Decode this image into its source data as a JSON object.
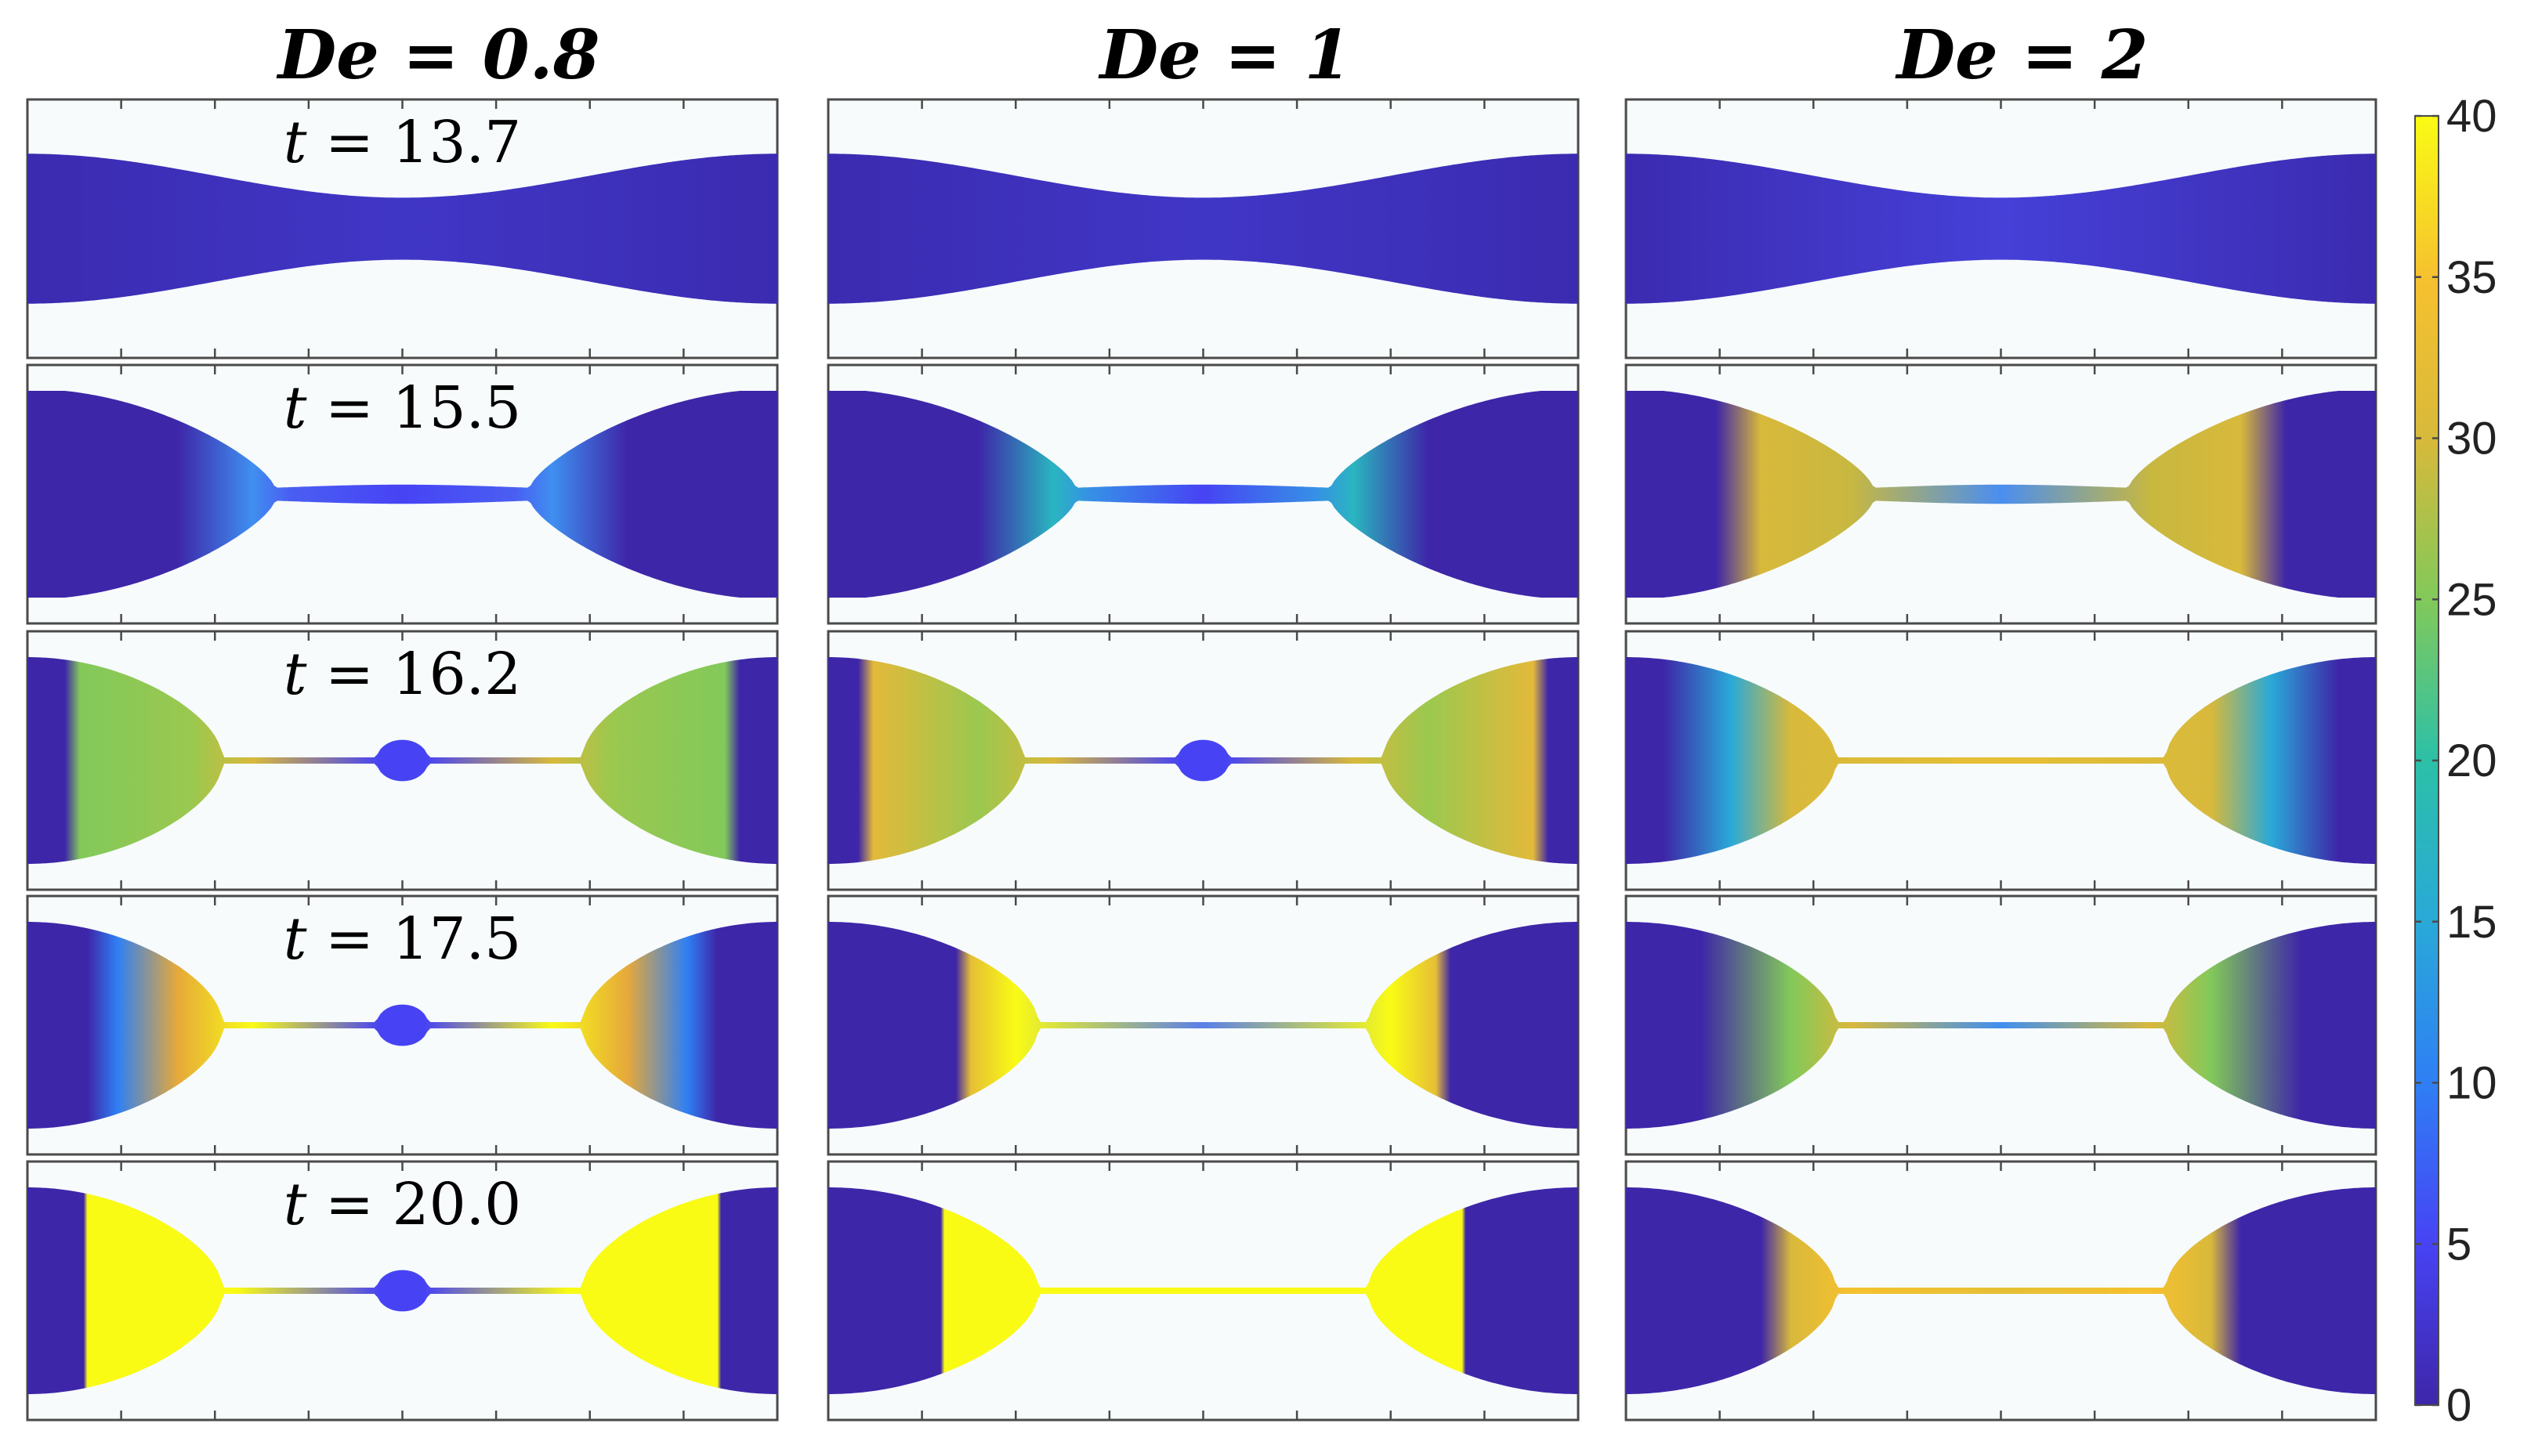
{
  "columns": [
    {
      "title": "De = 0.8"
    },
    {
      "title": "De = 1"
    },
    {
      "title": "De = 2"
    }
  ],
  "rows": [
    {
      "label_var": "t",
      "label_value": " = 13.7"
    },
    {
      "label_var": "t",
      "label_value": " = 15.5"
    },
    {
      "label_var": "t",
      "label_value": " = 16.2"
    },
    {
      "label_var": "t",
      "label_value": " = 17.5"
    },
    {
      "label_var": "t",
      "label_value": " = 20.0"
    }
  ],
  "colorbar": {
    "min": 0,
    "max": 40,
    "ticks": [
      "0",
      "5",
      "10",
      "15",
      "20",
      "25",
      "30",
      "35",
      "40"
    ],
    "colormap": "parula",
    "colors": [
      "#3e26a8",
      "#4743f4",
      "#2f7ff4",
      "#2aa9d8",
      "#2cc0a7",
      "#82c95a",
      "#d8b93b",
      "#f6c12f",
      "#f9fb15"
    ]
  },
  "filament_field": [
    [
      {
        "shape": "wave",
        "color": [
          [
            0,
            "#3b2bb0"
          ],
          [
            0.5,
            "#4036c6"
          ],
          [
            1,
            "#3b2bb0"
          ]
        ]
      },
      {
        "shape": "wave",
        "color": [
          [
            0,
            "#3b2bb0"
          ],
          [
            0.5,
            "#4036c6"
          ],
          [
            1,
            "#3b2bb0"
          ]
        ]
      },
      {
        "shape": "wave",
        "color": [
          [
            0,
            "#3b2bb0"
          ],
          [
            0.5,
            "#4640d8"
          ],
          [
            1,
            "#3b2bb0"
          ]
        ]
      }
    ],
    [
      {
        "shape": "neck",
        "color": [
          [
            0,
            "#3e26a8"
          ],
          [
            0.2,
            "#3e26a8"
          ],
          [
            0.3,
            "#3f8ff0"
          ],
          [
            0.35,
            "#4a5ef2"
          ],
          [
            0.5,
            "#4743f4"
          ],
          [
            0.65,
            "#4a5ef2"
          ],
          [
            0.7,
            "#3f8ff0"
          ],
          [
            0.8,
            "#3e26a8"
          ],
          [
            1,
            "#3e26a8"
          ]
        ]
      },
      {
        "shape": "neck",
        "color": [
          [
            0,
            "#3e26a8"
          ],
          [
            0.2,
            "#3e26a8"
          ],
          [
            0.3,
            "#2ab5c0"
          ],
          [
            0.35,
            "#3690e6"
          ],
          [
            0.5,
            "#4743f4"
          ],
          [
            0.65,
            "#3690e6"
          ],
          [
            0.7,
            "#2ab5c0"
          ],
          [
            0.8,
            "#3e26a8"
          ],
          [
            1,
            "#3e26a8"
          ]
        ]
      },
      {
        "shape": "neck",
        "color": [
          [
            0,
            "#3e26a8"
          ],
          [
            0.12,
            "#3e26a8"
          ],
          [
            0.18,
            "#d8b93b"
          ],
          [
            0.3,
            "#c8b840"
          ],
          [
            0.5,
            "#4a8ef0"
          ],
          [
            0.7,
            "#c8b840"
          ],
          [
            0.82,
            "#d8b93b"
          ],
          [
            0.88,
            "#3e26a8"
          ],
          [
            1,
            "#3e26a8"
          ]
        ]
      }
    ],
    [
      {
        "shape": "thread-bead",
        "color": [
          [
            0,
            "#3e26a8"
          ],
          [
            0.05,
            "#3e26a8"
          ],
          [
            0.07,
            "#82c95a"
          ],
          [
            0.22,
            "#9bc84f"
          ],
          [
            0.3,
            "#d8b93b"
          ],
          [
            0.47,
            "#4743f4"
          ],
          [
            0.53,
            "#4743f4"
          ],
          [
            0.7,
            "#d8b93b"
          ],
          [
            0.78,
            "#9bc84f"
          ],
          [
            0.93,
            "#82c95a"
          ],
          [
            0.95,
            "#3e26a8"
          ],
          [
            1,
            "#3e26a8"
          ]
        ]
      },
      {
        "shape": "thread-bead",
        "color": [
          [
            0,
            "#3e26a8"
          ],
          [
            0.04,
            "#3e26a8"
          ],
          [
            0.06,
            "#e3b93a"
          ],
          [
            0.2,
            "#9bc84f"
          ],
          [
            0.3,
            "#d8b93b"
          ],
          [
            0.47,
            "#4743f4"
          ],
          [
            0.53,
            "#4743f4"
          ],
          [
            0.7,
            "#d8b93b"
          ],
          [
            0.8,
            "#9bc84f"
          ],
          [
            0.94,
            "#e3b93a"
          ],
          [
            0.96,
            "#3e26a8"
          ],
          [
            1,
            "#3e26a8"
          ]
        ]
      },
      {
        "shape": "thread",
        "color": [
          [
            0,
            "#3e26a8"
          ],
          [
            0.05,
            "#3e26a8"
          ],
          [
            0.14,
            "#2aa9d8"
          ],
          [
            0.22,
            "#d8b93b"
          ],
          [
            0.5,
            "#e6bf35"
          ],
          [
            0.78,
            "#d8b93b"
          ],
          [
            0.86,
            "#2aa9d8"
          ],
          [
            0.95,
            "#3e26a8"
          ],
          [
            1,
            "#3e26a8"
          ]
        ]
      }
    ],
    [
      {
        "shape": "thread-bead",
        "color": [
          [
            0,
            "#3e26a8"
          ],
          [
            0.08,
            "#3e26a8"
          ],
          [
            0.12,
            "#2f7ff4"
          ],
          [
            0.2,
            "#e6a93a"
          ],
          [
            0.3,
            "#f9fb15"
          ],
          [
            0.47,
            "#4743f4"
          ],
          [
            0.53,
            "#4743f4"
          ],
          [
            0.7,
            "#f9fb15"
          ],
          [
            0.8,
            "#e6a93a"
          ],
          [
            0.88,
            "#2f7ff4"
          ],
          [
            0.92,
            "#3e26a8"
          ],
          [
            1,
            "#3e26a8"
          ]
        ]
      },
      {
        "shape": "thread",
        "color": [
          [
            0,
            "#3e26a8"
          ],
          [
            0.17,
            "#3e26a8"
          ],
          [
            0.19,
            "#e6bf35"
          ],
          [
            0.25,
            "#f9fb15"
          ],
          [
            0.5,
            "#5a7fe8"
          ],
          [
            0.75,
            "#f9fb15"
          ],
          [
            0.81,
            "#e6bf35"
          ],
          [
            0.83,
            "#3e26a8"
          ],
          [
            1,
            "#3e26a8"
          ]
        ]
      },
      {
        "shape": "thread",
        "color": [
          [
            0,
            "#3e26a8"
          ],
          [
            0.1,
            "#3e26a8"
          ],
          [
            0.22,
            "#82c95a"
          ],
          [
            0.3,
            "#d8b93b"
          ],
          [
            0.5,
            "#3f8ff0"
          ],
          [
            0.7,
            "#d8b93b"
          ],
          [
            0.78,
            "#82c95a"
          ],
          [
            0.9,
            "#3e26a8"
          ],
          [
            1,
            "#3e26a8"
          ]
        ]
      }
    ],
    [
      {
        "shape": "thread-bead",
        "color": [
          [
            0,
            "#3e26a8"
          ],
          [
            0.075,
            "#3e26a8"
          ],
          [
            0.08,
            "#f9fb15"
          ],
          [
            0.28,
            "#f9fb15"
          ],
          [
            0.47,
            "#4743f4"
          ],
          [
            0.53,
            "#4743f4"
          ],
          [
            0.72,
            "#f9fb15"
          ],
          [
            0.92,
            "#f9fb15"
          ],
          [
            0.925,
            "#3e26a8"
          ],
          [
            1,
            "#3e26a8"
          ]
        ]
      },
      {
        "shape": "thread",
        "color": [
          [
            0,
            "#3e26a8"
          ],
          [
            0.15,
            "#3e26a8"
          ],
          [
            0.155,
            "#f9fb15"
          ],
          [
            0.5,
            "#f9fb15"
          ],
          [
            0.845,
            "#f9fb15"
          ],
          [
            0.85,
            "#3e26a8"
          ],
          [
            1,
            "#3e26a8"
          ]
        ]
      },
      {
        "shape": "thread",
        "color": [
          [
            0,
            "#3e26a8"
          ],
          [
            0.18,
            "#3e26a8"
          ],
          [
            0.22,
            "#d8b93b"
          ],
          [
            0.3,
            "#f6c12f"
          ],
          [
            0.5,
            "#e6bf35"
          ],
          [
            0.7,
            "#f6c12f"
          ],
          [
            0.78,
            "#d8b93b"
          ],
          [
            0.82,
            "#3e26a8"
          ],
          [
            1,
            "#3e26a8"
          ]
        ]
      }
    ]
  ]
}
